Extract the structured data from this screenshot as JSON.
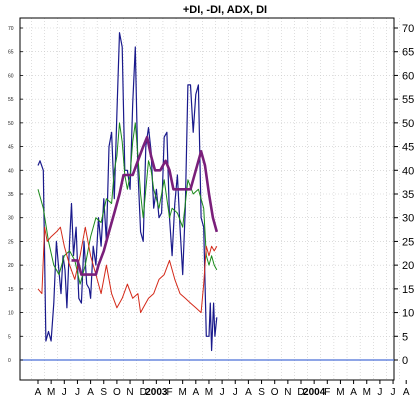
{
  "chart_data": {
    "type": "line",
    "title": "+DI, -DI, ADX, DI",
    "ylim": [
      0,
      70
    ],
    "y_ticks": [
      0,
      5,
      10,
      15,
      20,
      25,
      30,
      35,
      40,
      45,
      50,
      55,
      60,
      65,
      70
    ],
    "x_labels": [
      "A",
      "M",
      "J",
      "J",
      "A",
      "S",
      "O",
      "N",
      "D",
      "2003",
      "F",
      "M",
      "A",
      "M",
      "J",
      "J",
      "A",
      "S",
      "O",
      "N",
      "D",
      "2004",
      "F",
      "M",
      "A",
      "M",
      "J",
      "J",
      "A"
    ],
    "zero_line_color": "#4a6fd8",
    "grid": true,
    "series": [
      {
        "color": "#1a1a8c",
        "width": 1.2,
        "points": [
          [
            0,
            41
          ],
          [
            0.15,
            42
          ],
          [
            0.4,
            40
          ],
          [
            0.6,
            4
          ],
          [
            0.8,
            6
          ],
          [
            1.0,
            4
          ],
          [
            1.2,
            12
          ],
          [
            1.4,
            25
          ],
          [
            1.55,
            20
          ],
          [
            1.75,
            14
          ],
          [
            1.9,
            22
          ],
          [
            2.05,
            19
          ],
          [
            2.2,
            11
          ],
          [
            2.4,
            25
          ],
          [
            2.55,
            33
          ],
          [
            2.7,
            22
          ],
          [
            2.9,
            28
          ],
          [
            3.1,
            13
          ],
          [
            3.3,
            12
          ],
          [
            3.5,
            25
          ],
          [
            3.7,
            16
          ],
          [
            3.9,
            15
          ],
          [
            4.0,
            13
          ],
          [
            4.2,
            24
          ],
          [
            4.4,
            20
          ],
          [
            4.6,
            30
          ],
          [
            4.8,
            24
          ],
          [
            5.0,
            34
          ],
          [
            5.2,
            25
          ],
          [
            5.4,
            45
          ],
          [
            5.6,
            48
          ],
          [
            5.8,
            34
          ],
          [
            6.0,
            52
          ],
          [
            6.2,
            69
          ],
          [
            6.4,
            66
          ],
          [
            6.6,
            40
          ],
          [
            6.8,
            40
          ],
          [
            7.0,
            36
          ],
          [
            7.2,
            54
          ],
          [
            7.4,
            66
          ],
          [
            7.6,
            40
          ],
          [
            7.8,
            27
          ],
          [
            8.0,
            25
          ],
          [
            8.2,
            45
          ],
          [
            8.4,
            49
          ],
          [
            8.6,
            44
          ],
          [
            8.8,
            32
          ],
          [
            9.0,
            36
          ],
          [
            9.2,
            30
          ],
          [
            9.4,
            31
          ],
          [
            9.6,
            47
          ],
          [
            9.8,
            48
          ],
          [
            10.0,
            30
          ],
          [
            10.2,
            22
          ],
          [
            10.4,
            33
          ],
          [
            10.6,
            39
          ],
          [
            10.8,
            28
          ],
          [
            11.0,
            18
          ],
          [
            11.2,
            32
          ],
          [
            11.4,
            58
          ],
          [
            11.6,
            58
          ],
          [
            11.8,
            48
          ],
          [
            12.0,
            56
          ],
          [
            12.2,
            58
          ],
          [
            12.4,
            30
          ],
          [
            12.6,
            28
          ],
          [
            12.8,
            5
          ],
          [
            13.0,
            5
          ],
          [
            13.1,
            12
          ],
          [
            13.2,
            2
          ],
          [
            13.35,
            12
          ],
          [
            13.45,
            5
          ],
          [
            13.6,
            9
          ]
        ]
      },
      {
        "color": "#1a8a1a",
        "width": 1.0,
        "points": [
          [
            0,
            36
          ],
          [
            0.4,
            32
          ],
          [
            0.8,
            25
          ],
          [
            1.2,
            20
          ],
          [
            1.6,
            18
          ],
          [
            2.0,
            22
          ],
          [
            2.4,
            23
          ],
          [
            2.8,
            21
          ],
          [
            3.2,
            16
          ],
          [
            3.6,
            20
          ],
          [
            4.0,
            26
          ],
          [
            4.4,
            30
          ],
          [
            4.8,
            29
          ],
          [
            5.2,
            34
          ],
          [
            5.6,
            33
          ],
          [
            5.8,
            40
          ],
          [
            6.0,
            43
          ],
          [
            6.2,
            50
          ],
          [
            6.4,
            46
          ],
          [
            6.6,
            39
          ],
          [
            6.8,
            36
          ],
          [
            7.0,
            39
          ],
          [
            7.2,
            46
          ],
          [
            7.4,
            50
          ],
          [
            7.6,
            43
          ],
          [
            7.8,
            35
          ],
          [
            8.0,
            30
          ],
          [
            8.2,
            36
          ],
          [
            8.4,
            42
          ],
          [
            8.6,
            40
          ],
          [
            8.8,
            36
          ],
          [
            9.2,
            32
          ],
          [
            9.6,
            38
          ],
          [
            10.0,
            30
          ],
          [
            10.2,
            32
          ],
          [
            10.6,
            31
          ],
          [
            11.0,
            28
          ],
          [
            11.4,
            38
          ],
          [
            11.8,
            35
          ],
          [
            12.2,
            36
          ],
          [
            12.6,
            32
          ],
          [
            12.8,
            22
          ],
          [
            13.0,
            20
          ],
          [
            13.2,
            22
          ],
          [
            13.4,
            20
          ],
          [
            13.6,
            19
          ]
        ]
      },
      {
        "color": "#d42a1a",
        "width": 1.0,
        "points": [
          [
            0,
            15
          ],
          [
            0.3,
            14
          ],
          [
            0.5,
            28
          ],
          [
            0.7,
            25
          ],
          [
            1.0,
            26
          ],
          [
            1.4,
            27
          ],
          [
            1.7,
            28
          ],
          [
            2.0,
            24
          ],
          [
            2.4,
            20
          ],
          [
            2.8,
            17
          ],
          [
            3.2,
            22
          ],
          [
            3.6,
            28
          ],
          [
            4.0,
            22
          ],
          [
            4.4,
            18
          ],
          [
            4.8,
            14
          ],
          [
            5.2,
            20
          ],
          [
            5.6,
            14
          ],
          [
            6.0,
            11
          ],
          [
            6.4,
            13
          ],
          [
            6.8,
            16
          ],
          [
            7.2,
            13
          ],
          [
            7.6,
            14
          ],
          [
            7.8,
            10
          ],
          [
            8.0,
            11
          ],
          [
            8.4,
            13
          ],
          [
            8.8,
            14
          ],
          [
            9.2,
            17
          ],
          [
            9.6,
            18
          ],
          [
            10.0,
            21
          ],
          [
            10.4,
            17
          ],
          [
            10.8,
            14
          ],
          [
            11.2,
            13
          ],
          [
            11.6,
            12
          ],
          [
            12.0,
            11
          ],
          [
            12.4,
            10
          ],
          [
            12.6,
            16
          ],
          [
            12.8,
            24
          ],
          [
            13.0,
            22
          ],
          [
            13.2,
            24
          ],
          [
            13.4,
            23
          ],
          [
            13.6,
            24
          ]
        ]
      },
      {
        "color": "#7a1f7a",
        "width": 2.6,
        "points": [
          [
            2.55,
            21
          ],
          [
            3.0,
            21
          ],
          [
            3.3,
            18
          ],
          [
            4.4,
            18
          ],
          [
            4.6,
            20
          ],
          [
            5.0,
            23
          ],
          [
            5.4,
            27
          ],
          [
            5.8,
            31
          ],
          [
            6.2,
            35
          ],
          [
            6.5,
            39
          ],
          [
            7.2,
            39
          ],
          [
            7.6,
            42
          ],
          [
            8.0,
            45
          ],
          [
            8.3,
            47
          ],
          [
            8.6,
            43
          ],
          [
            8.9,
            40
          ],
          [
            9.3,
            40
          ],
          [
            9.7,
            42
          ],
          [
            10.0,
            40
          ],
          [
            10.3,
            36
          ],
          [
            11.6,
            36
          ],
          [
            12.0,
            40
          ],
          [
            12.4,
            44
          ],
          [
            12.7,
            41
          ],
          [
            13.0,
            35
          ],
          [
            13.3,
            30
          ],
          [
            13.6,
            27
          ]
        ]
      }
    ]
  }
}
